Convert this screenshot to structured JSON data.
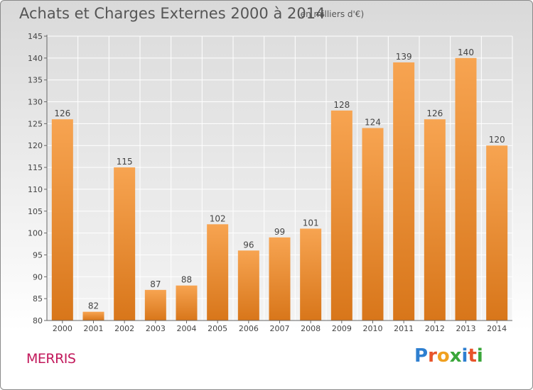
{
  "header": {
    "title": "Achats et Charges Externes 2000 à 2014",
    "unit": "(en milliers d'€)"
  },
  "footer": {
    "commune": "MERRIS",
    "logo_letters": [
      "P",
      "r",
      "o",
      "x",
      "i",
      "t",
      "i"
    ],
    "logo_colors": [
      "#2e7fd0",
      "#e8542a",
      "#f0a020",
      "#3aa63a",
      "#2e7fd0",
      "#e8542a",
      "#3aa63a"
    ]
  },
  "chart_data": {
    "type": "bar",
    "categories": [
      "2000",
      "2001",
      "2002",
      "2003",
      "2004",
      "2005",
      "2006",
      "2007",
      "2008",
      "2009",
      "2010",
      "2011",
      "2012",
      "2013",
      "2014"
    ],
    "values": [
      126,
      82,
      115,
      87,
      88,
      102,
      96,
      99,
      101,
      128,
      124,
      139,
      126,
      140,
      120
    ],
    "ylim": [
      80,
      145
    ],
    "yticks": [
      80,
      85,
      90,
      95,
      100,
      105,
      110,
      115,
      120,
      125,
      130,
      135,
      140,
      145
    ],
    "grid": true,
    "bar_color_top": "#f7a451",
    "bar_color_bottom": "#d8761a"
  }
}
